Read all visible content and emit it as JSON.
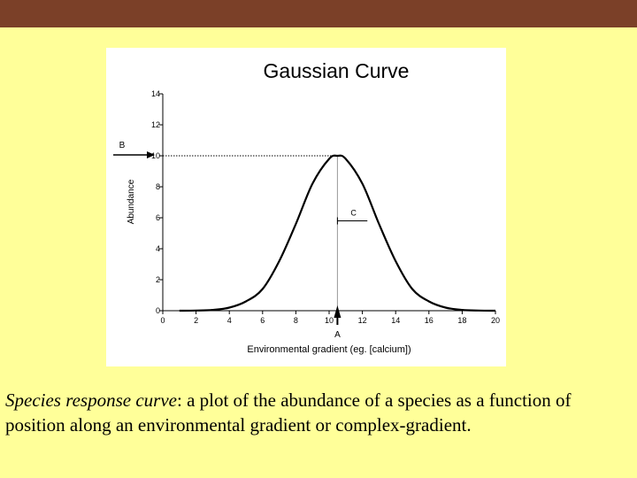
{
  "header": {
    "bar_color": "#7b4028"
  },
  "background_color": "#ffff99",
  "chart_data": {
    "type": "line",
    "title": "Gaussian Curve",
    "xlabel": "Environmental gradient (eg. [calcium])",
    "ylabel": "Abundance",
    "xlim": [
      0,
      20
    ],
    "ylim": [
      0,
      14
    ],
    "xticks": [
      "0",
      "2",
      "4",
      "6",
      "8",
      "10",
      "12",
      "14",
      "16",
      "18",
      "20"
    ],
    "yticks": [
      "0",
      "2",
      "4",
      "6",
      "8",
      "10",
      "12",
      "14"
    ],
    "grid": false,
    "series": [
      {
        "x": [
          1,
          2,
          3,
          4,
          5,
          6,
          7,
          8,
          9,
          10,
          10.5,
          11,
          12,
          13,
          14,
          15,
          16,
          17,
          18,
          19,
          20
        ],
        "values": [
          0.0,
          0.01,
          0.05,
          0.2,
          0.6,
          1.4,
          3.2,
          5.6,
          8.2,
          9.8,
          10.0,
          9.8,
          8.2,
          5.6,
          3.2,
          1.4,
          0.6,
          0.2,
          0.05,
          0.01,
          0.0
        ]
      }
    ],
    "optimum": {
      "x": 10.5,
      "y": 10
    },
    "annotations": {
      "optimum_label": "A",
      "max_abundance_label": "B",
      "tolerance_label": "C",
      "tolerance_x_start": 10.5,
      "tolerance_x_end": 12.3,
      "tolerance_y": 5.8
    }
  },
  "caption": {
    "term": "Species response curve",
    "text": ": a plot of the abundance of a species as a function of position along an environmental gradient or complex-gradient."
  }
}
